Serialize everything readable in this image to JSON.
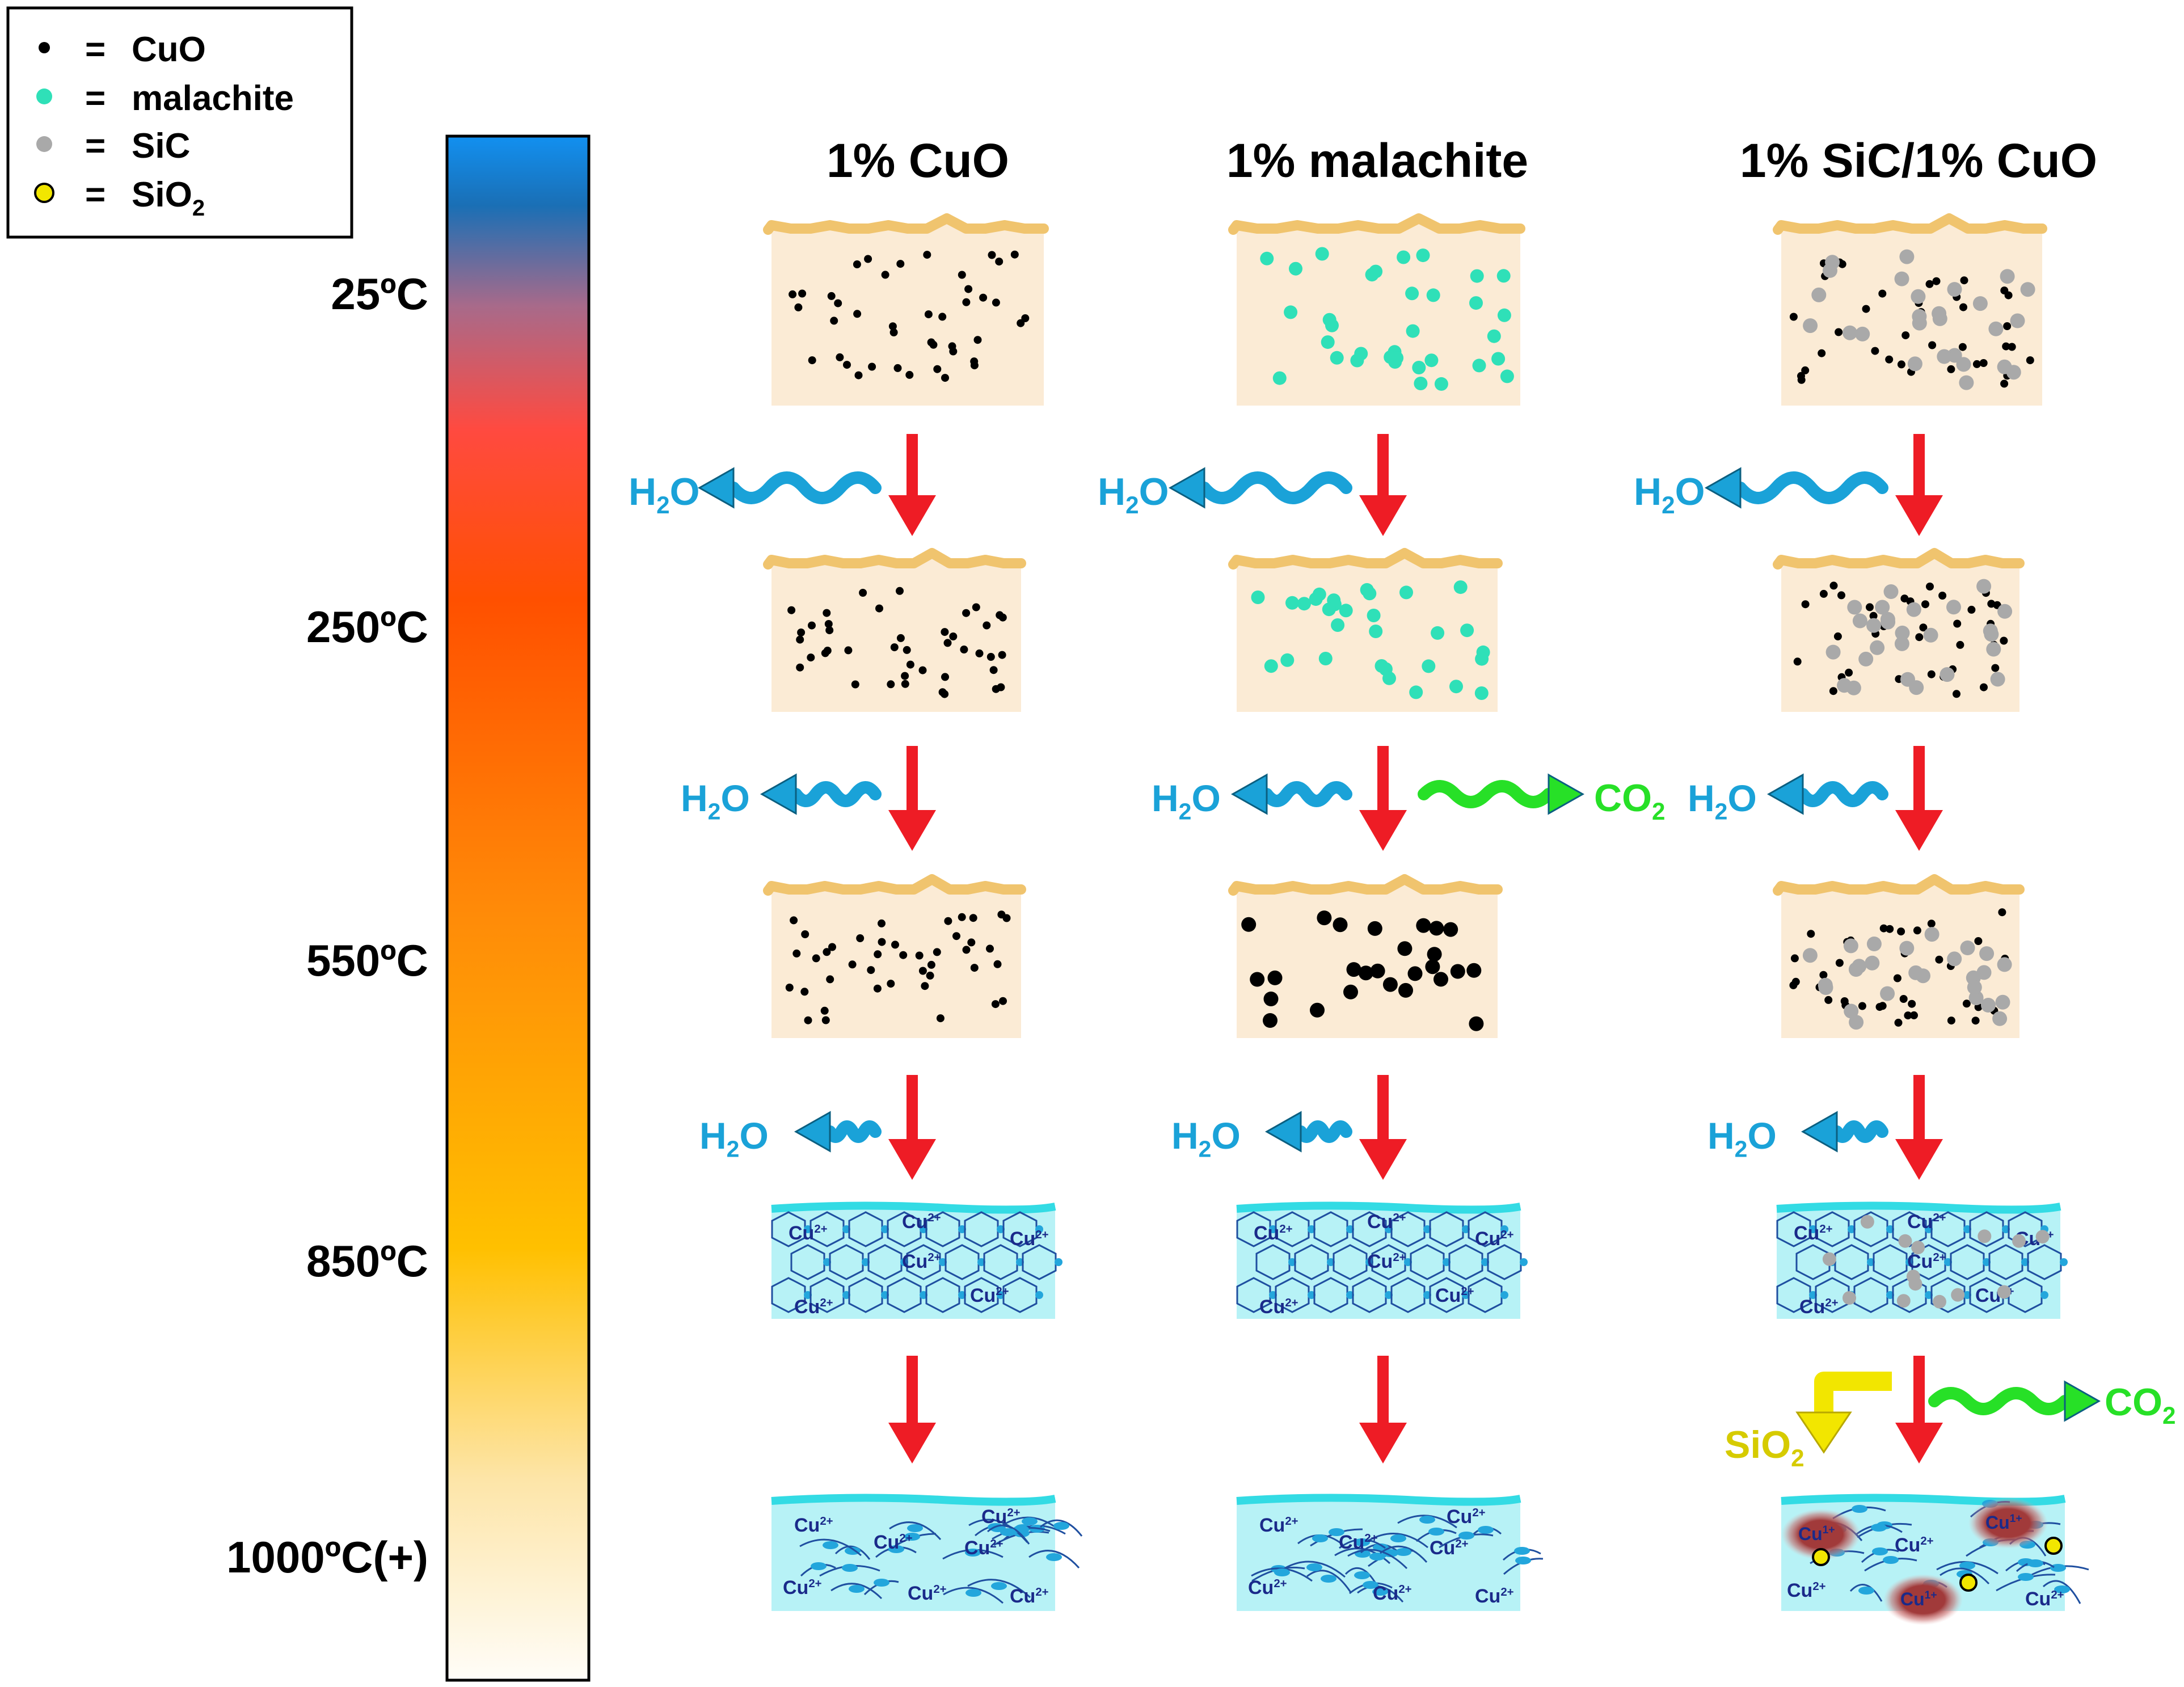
{
  "legend": {
    "items": [
      {
        "symbol": "dot-black",
        "text": "CuO"
      },
      {
        "symbol": "dot-teal",
        "text": "malachite"
      },
      {
        "symbol": "dot-gray",
        "text": "SiC"
      },
      {
        "symbol": "dot-yellow",
        "text": "SiO",
        "sub": "2"
      }
    ],
    "eq": "="
  },
  "colors": {
    "cuo": "#000000",
    "malachite": "#2fe0b8",
    "sic": "#a9a9a9",
    "sio2": "#f2e600",
    "sand": "#fbebd5",
    "crust": "#f0c46e",
    "glass": "#b7f2f6",
    "glass_top": "#33dbe4",
    "network": "#23a6dc",
    "h2o": "#1aa2d8",
    "co2": "#27e027",
    "red_arrow": "#ee1c25",
    "cu1": "#a13a3a"
  },
  "temperature_scale": {
    "labels": [
      "25ºC",
      "250ºC",
      "550ºC",
      "850ºC",
      "1000ºC(+)"
    ]
  },
  "columns": [
    {
      "title": "1% CuO",
      "particles": "cuo"
    },
    {
      "title": "1% malachite",
      "particles": "malachite"
    },
    {
      "title": "1% SiC/1% CuO",
      "particles": "sic-cuo"
    }
  ],
  "species": {
    "h2o": {
      "main": "H",
      "sub": "2",
      "tail": "O"
    },
    "co2": {
      "main": "CO",
      "sub": "2"
    },
    "sio2": {
      "main": "SiO",
      "sub": "2"
    }
  },
  "ions": {
    "cu2": {
      "main": "Cu",
      "sup": "2+"
    },
    "cu1": {
      "main": "Cu",
      "sup": "1+"
    }
  }
}
